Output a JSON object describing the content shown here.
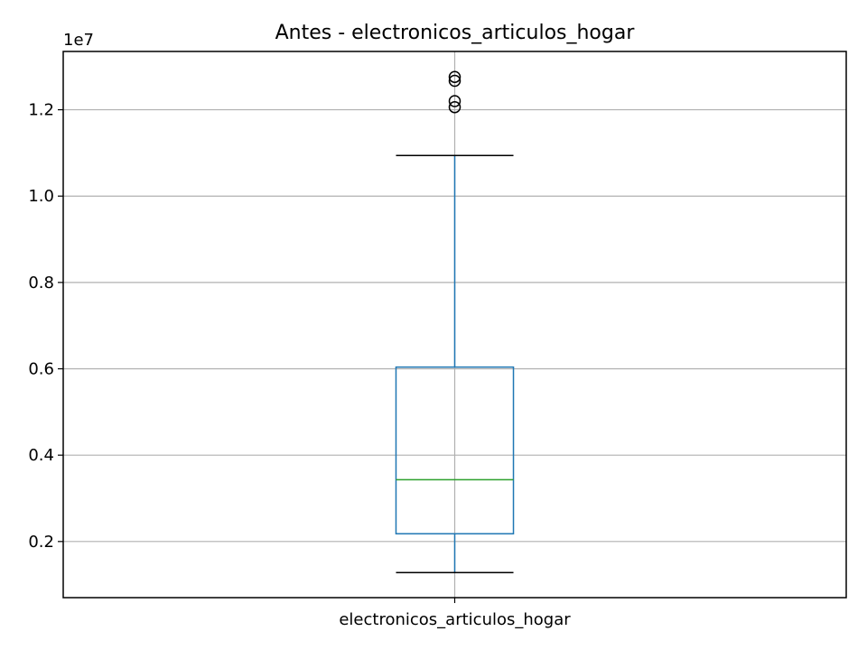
{
  "chart_data": {
    "type": "box",
    "title": "Antes - electronicos_articulos_hogar",
    "categories": [
      "electronicos_articulos_hogar"
    ],
    "y_offset_label": "1e7",
    "ylim": [
      0.07,
      1.335
    ],
    "yticks": [
      0.2,
      0.4,
      0.6,
      0.8,
      1.0,
      1.2
    ],
    "ytick_labels": [
      "0.2",
      "0.4",
      "0.6",
      "0.8",
      "1.0",
      "1.2"
    ],
    "grid": true,
    "boxes": [
      {
        "category": "electronicos_articulos_hogar",
        "whisker_low": 0.128,
        "q1": 0.218,
        "median": 0.343,
        "q3": 0.604,
        "whisker_high": 1.094,
        "outliers": [
          1.206,
          1.22,
          1.267,
          1.276
        ]
      }
    ],
    "colors": {
      "box": "#1f77b4",
      "median": "#2ca02c",
      "cap": "#000000",
      "grid": "#b0b0b0"
    }
  }
}
